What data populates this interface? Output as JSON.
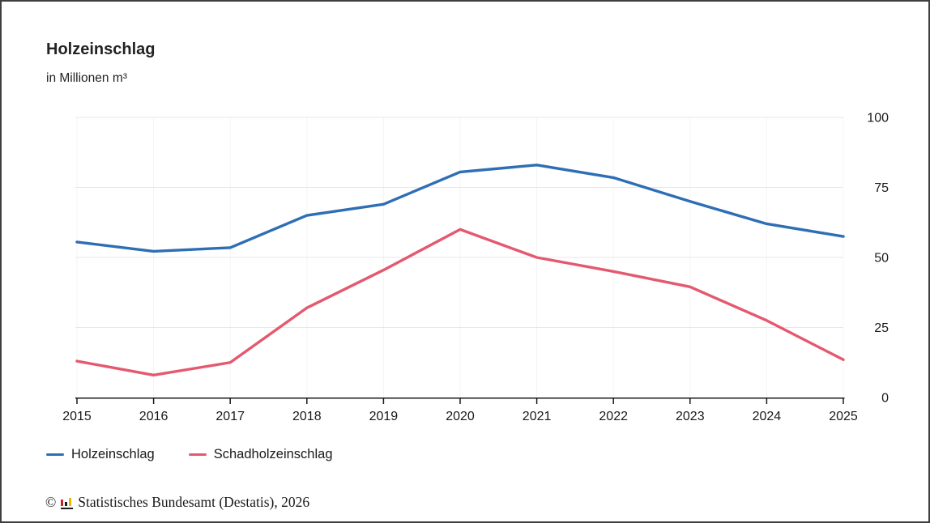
{
  "header": {
    "title": "Holzeinschlag",
    "subtitle": "in Millionen m³"
  },
  "chart_data": {
    "type": "line",
    "title": "Holzeinschlag",
    "unit": "in Millionen m³",
    "x": [
      2015,
      2016,
      2017,
      2018,
      2019,
      2020,
      2021,
      2022,
      2023,
      2024,
      2025
    ],
    "series": [
      {
        "name": "Holzeinschlag",
        "color": "#2e6eb5",
        "values": [
          55.5,
          52.2,
          53.5,
          65,
          69,
          80.5,
          83,
          78.5,
          70,
          62,
          57.5
        ]
      },
      {
        "name": "Schadholzeinschlag",
        "color": "#e4596f",
        "values": [
          13,
          8,
          12.5,
          32,
          45.5,
          60,
          50,
          45,
          39.5,
          27.5,
          13.5
        ]
      }
    ],
    "ylim": [
      0,
      100
    ],
    "yticks": [
      0,
      25,
      50,
      75,
      100
    ],
    "grid": {
      "horizontal": true,
      "vertical_faint": true
    },
    "legend_position": "bottom-left",
    "y_axis_side": "right"
  },
  "legend": {
    "items": [
      {
        "label": "Holzeinschlag",
        "color": "#2e6eb5"
      },
      {
        "label": "Schadholzeinschlag",
        "color": "#e4596f"
      }
    ]
  },
  "footer": {
    "copyright": "©",
    "source": "Statistisches Bundesamt (Destatis), 2026"
  }
}
